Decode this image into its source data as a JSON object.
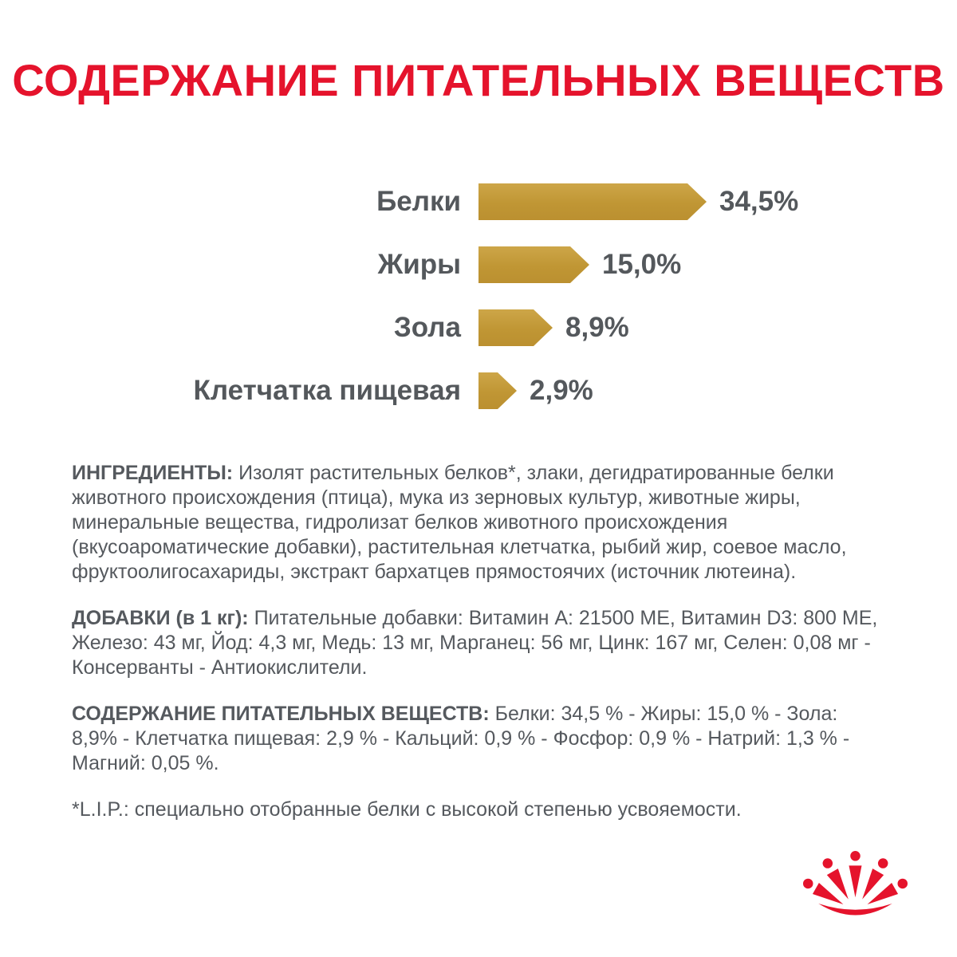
{
  "colors": {
    "brand_red": "#E5132C",
    "bar_gold": "#C39934",
    "text_gray": "#55595E"
  },
  "title": "СОДЕРЖАНИЕ ПИТАТЕЛЬНЫХ ВЕЩЕСТВ",
  "chart_data": {
    "type": "bar",
    "orientation": "horizontal",
    "title": "СОДЕРЖАНИЕ ПИТАТЕЛЬНЫХ ВЕЩЕСТВ",
    "categories": [
      "Белки",
      "Жиры",
      "Зола",
      "Клетчатка пищевая"
    ],
    "values": [
      34.5,
      15.0,
      8.9,
      2.9
    ],
    "value_labels": [
      "34,5%",
      "15,0%",
      "8,9%",
      "2,9%"
    ],
    "unit": "%",
    "bar_color": "#C39934",
    "xlim": [
      0,
      40
    ],
    "grid": false,
    "legend": false
  },
  "sections": [
    {
      "label": "ИНГРЕДИЕНТЫ:",
      "text": " Изолят растительных белков*, злаки, дегидратированные белки животного происхождения (птица), мука из зерновых культур, животные жиры, минеральные вещества, гидролизат белков животного происхождения (вкусоароматические добавки), растительная клетчатка, рыбий жир, соевое масло, фруктоолигосахариды, экстракт бархатцев прямостоячих (источник лютеина)."
    },
    {
      "label": "ДОБАВКИ (в 1 кг):",
      "text": " Питательные добавки: Витамин A: 21500 ME, Витамин D3: 800 ME, Железо: 43 мг, Йод: 4,3 мг, Медь: 13 мг, Марганец: 56 мг, Цинк: 167 мг, Селен: 0,08 мг - Консерванты - Антиокислители."
    },
    {
      "label": "СОДЕРЖАНИЕ ПИТАТЕЛЬНЫХ ВЕЩЕСТВ:",
      "text": " Белки: 34,5 % - Жиры: 15,0 % - Зола: 8,9% - Клетчатка пищевая: 2,9 % - Кальций: 0,9 % - Фосфор: 0,9 % - Натрий: 1,3 % - Магний: 0,05 %."
    }
  ],
  "footnote": "*L.I.P.: специально отобранные белки с высокой степенью усвояемости.",
  "logo": {
    "name": "royal-canin-crown",
    "color": "#E5132C"
  }
}
